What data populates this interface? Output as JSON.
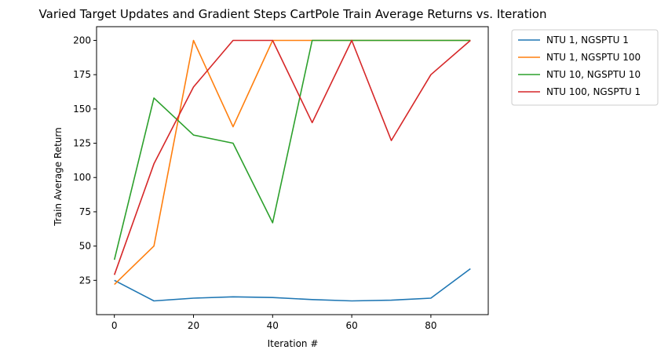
{
  "chart_data": {
    "type": "line",
    "title": "Varied Target Updates and Gradient Steps CartPole Train Average Returns vs. Iteration",
    "xlabel": "Iteration #",
    "ylabel": "Train Average Return",
    "xlim": [
      -4.5,
      94.5
    ],
    "ylim": [
      0,
      210
    ],
    "xticks": [
      0,
      20,
      40,
      60,
      80
    ],
    "yticks": [
      25,
      50,
      75,
      100,
      125,
      150,
      175,
      200
    ],
    "grid": false,
    "legend_position": "outside-right-top",
    "x": [
      0,
      10,
      20,
      30,
      40,
      50,
      60,
      70,
      80,
      90
    ],
    "series": [
      {
        "name": "NTU 1, NGSPTU 1",
        "color": "#1f77b4",
        "values": [
          25,
          10,
          12,
          13,
          12.5,
          11,
          10,
          10.5,
          12,
          33.5
        ]
      },
      {
        "name": "NTU 1, NGSPTU 100",
        "color": "#ff7f0e",
        "values": [
          22,
          50,
          200,
          137,
          200,
          200,
          200,
          200,
          200,
          200
        ]
      },
      {
        "name": "NTU 10, NGSPTU 10",
        "color": "#2ca02c",
        "values": [
          40,
          158,
          131,
          125,
          67,
          200,
          200,
          200,
          200,
          200
        ]
      },
      {
        "name": "NTU 100, NGSPTU 1",
        "color": "#d62728",
        "values": [
          29,
          110,
          166,
          200,
          200,
          140,
          200,
          127,
          175,
          200
        ]
      }
    ]
  }
}
